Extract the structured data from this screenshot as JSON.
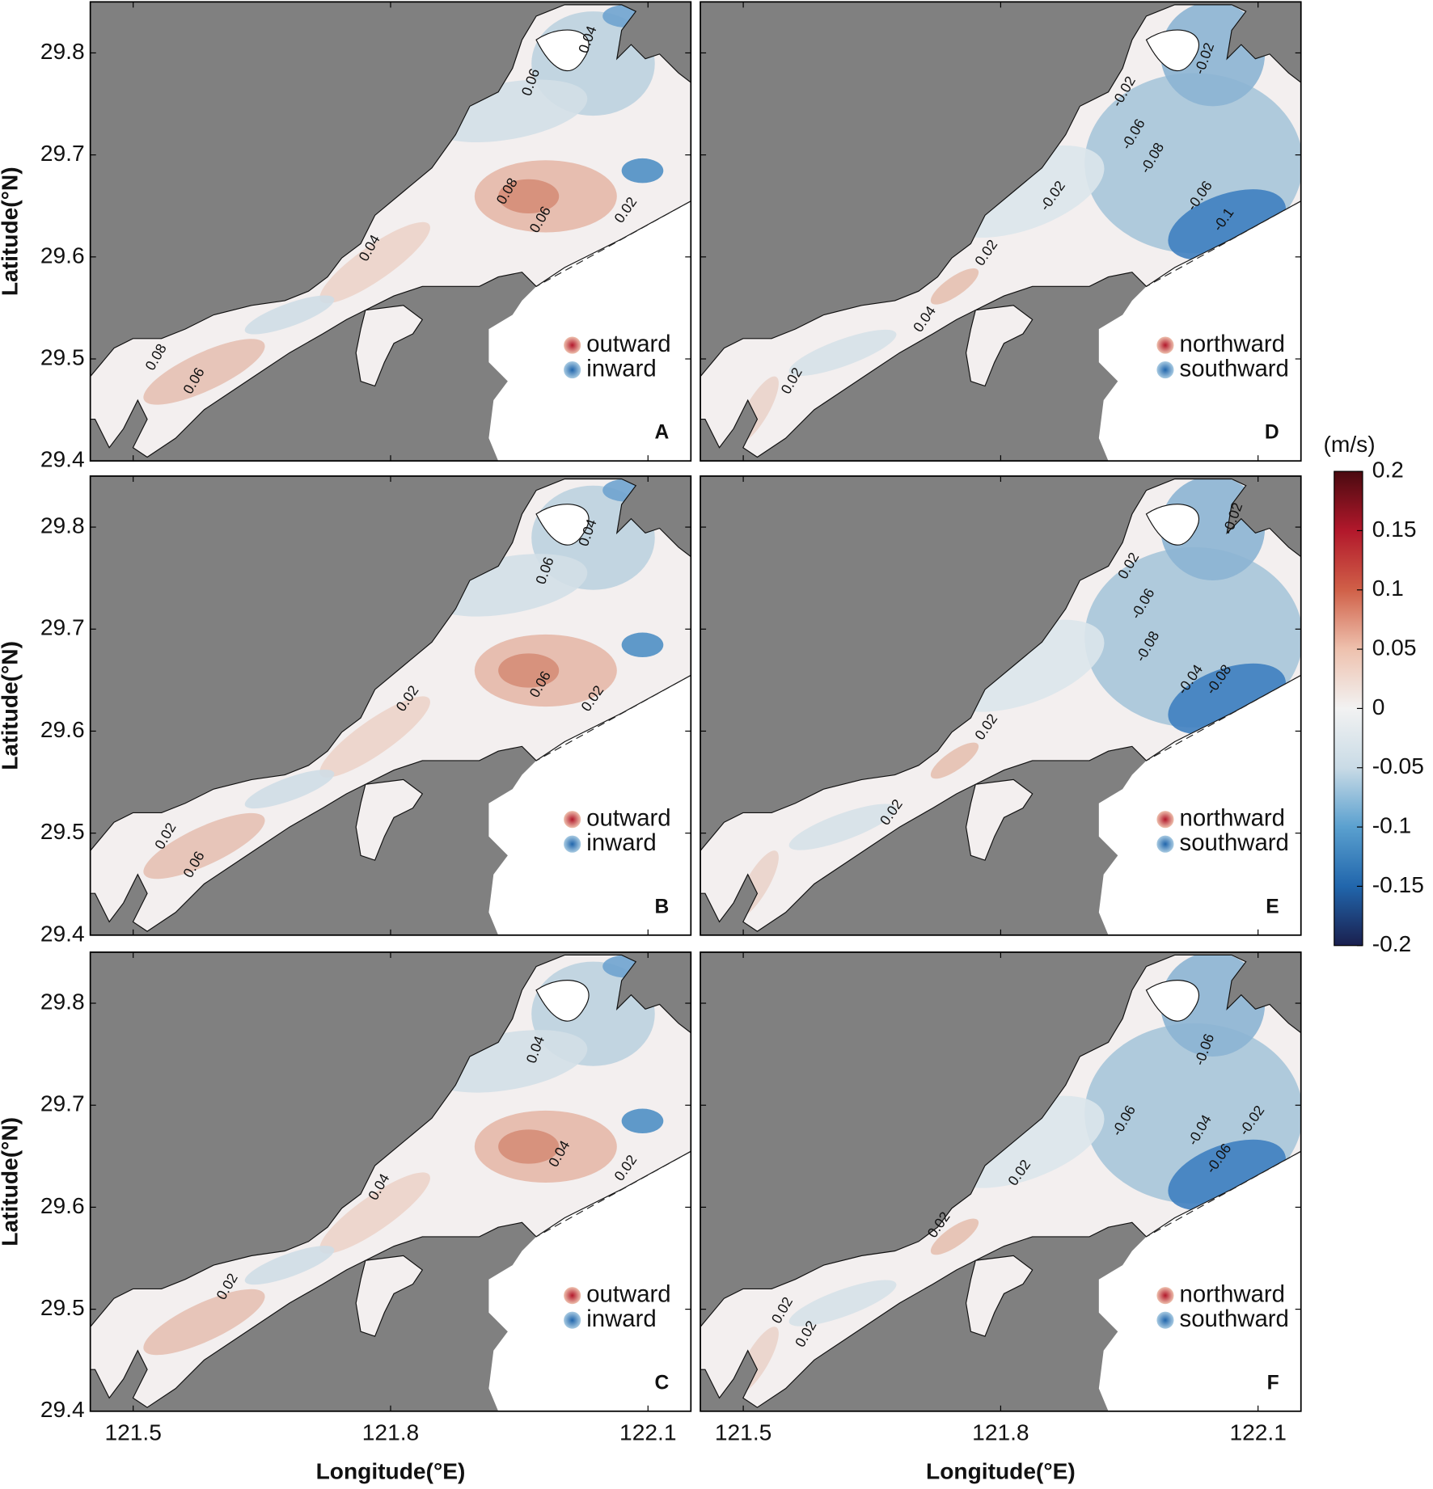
{
  "figure": {
    "type": "map",
    "x_label": "Longitude(°E)",
    "y_label": "Latitude(°N)",
    "xlim": [
      121.45,
      122.15
    ],
    "ylim": [
      29.4,
      29.85
    ],
    "xticks": [
      121.5,
      121.8,
      122.1
    ],
    "yticks": [
      29.4,
      29.5,
      29.6,
      29.7,
      29.8
    ],
    "land_color": "#808080",
    "water_color": "#f3efef",
    "panels": [
      {
        "label": "A",
        "legend": [
          "outward",
          "inward"
        ],
        "contour_labels": [
          0.06,
          0.04,
          0.08,
          0.06,
          0.02,
          0.04,
          0.08,
          0.06
        ]
      },
      {
        "label": "B",
        "legend": [
          "outward",
          "inward"
        ],
        "contour_labels": [
          0.06,
          0.04,
          0.06,
          0.02,
          0.02,
          0.02,
          0.06
        ]
      },
      {
        "label": "C",
        "legend": [
          "outward",
          "inward"
        ],
        "contour_labels": [
          0.04,
          0.04,
          0.02,
          0.04,
          0.02
        ]
      },
      {
        "label": "D",
        "legend": [
          "northward",
          "southward"
        ],
        "contour_labels": [
          -0.02,
          -0.02,
          -0.06,
          -0.08,
          -0.06,
          -0.1,
          -0.02,
          0.02,
          0.04,
          0.02
        ]
      },
      {
        "label": "E",
        "legend": [
          "northward",
          "southward"
        ],
        "contour_labels": [
          -0.02,
          0.02,
          -0.06,
          -0.08,
          -0.04,
          -0.08,
          0.02,
          0.02
        ]
      },
      {
        "label": "F",
        "legend": [
          "northward",
          "southward"
        ],
        "contour_labels": [
          -0.06,
          -0.06,
          -0.04,
          -0.02,
          -0.06,
          0.02,
          0.02,
          0.02,
          0.02
        ]
      }
    ],
    "colorbar": {
      "label": "(m/s)",
      "lim": [
        -0.2,
        0.2
      ],
      "ticks": [
        -0.2,
        -0.15,
        -0.1,
        -0.05,
        0,
        0.05,
        0.1,
        0.15,
        0.2
      ],
      "colors": [
        "#1a1f4e",
        "#2166ac",
        "#5aa0cf",
        "#c9dbe6",
        "#f2f2f2",
        "#eec1ae",
        "#d06048",
        "#b2182b",
        "#4a0a10"
      ]
    }
  }
}
